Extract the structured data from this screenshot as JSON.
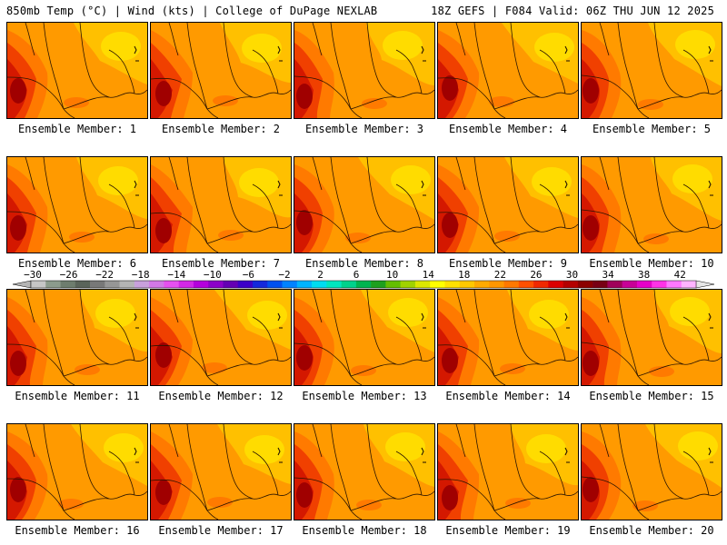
{
  "header": {
    "left": "850mb Temp (°C) | Wind (kts) | College of DuPage NEXLAB",
    "right": "18Z GEFS | F084 Valid: 06Z THU JUN 12 2025"
  },
  "panel_label_prefix": "Ensemble Member: ",
  "members": [
    1,
    2,
    3,
    4,
    5,
    6,
    7,
    8,
    9,
    10,
    11,
    12,
    13,
    14,
    15,
    16,
    17,
    18,
    19,
    20
  ],
  "colorbar": {
    "tick_labels": [
      "−30",
      "−26",
      "−22",
      "−18",
      "−14",
      "−10",
      "−6",
      "−2",
      "2",
      "6",
      "10",
      "14",
      "18",
      "22",
      "26",
      "30",
      "34",
      "38",
      "42"
    ],
    "colors": [
      "#c6c6c6",
      "#8c9b8c",
      "#6e7d6e",
      "#5a645a",
      "#787878",
      "#969696",
      "#b4b4b4",
      "#c8a0dc",
      "#d278e6",
      "#e650f0",
      "#d228e6",
      "#b400dc",
      "#8c00c8",
      "#6400b4",
      "#3c00c8",
      "#1428dc",
      "#0050f0",
      "#0082ff",
      "#00b4ff",
      "#00dcf0",
      "#00e6be",
      "#00d28c",
      "#00b450",
      "#1ea01e",
      "#64be00",
      "#a0d200",
      "#dce600",
      "#ffff00",
      "#ffe000",
      "#ffc800",
      "#ffaa00",
      "#ff9600",
      "#ff7800",
      "#ff5000",
      "#f02800",
      "#dc0000",
      "#b40000",
      "#8c0000",
      "#780014",
      "#a0005a",
      "#c80096",
      "#e600c8",
      "#ff32e6",
      "#ff78ff",
      "#ffb4ff"
    ],
    "end_colors": {
      "left": "#b4b4b4",
      "right": "#e6e6e6"
    }
  },
  "map_colors": {
    "base": "#ff9a00",
    "light": "#ffc000",
    "lighter": "#ffdc00",
    "warm": "#ff7a00",
    "hot": "#f04000",
    "hotter": "#d41800",
    "hottest": "#a00000"
  }
}
